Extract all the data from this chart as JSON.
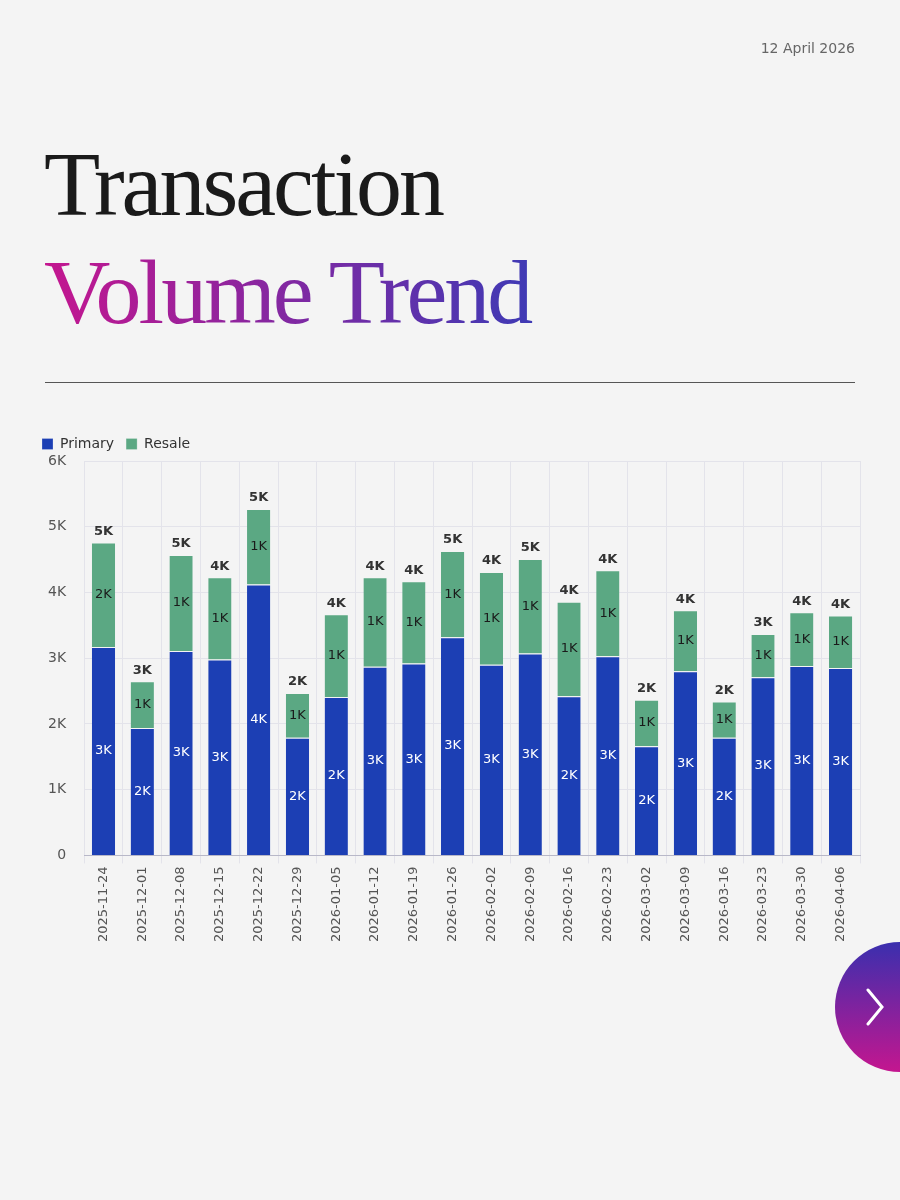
{
  "chart_data": {
    "type": "bar",
    "stacked": true,
    "title": "Transaction Volume Trend",
    "annotations": [
      "12 April 2026"
    ],
    "categories": [
      "2025-11-24",
      "2025-12-01",
      "2025-12-08",
      "2025-12-15",
      "2025-12-22",
      "2025-12-29",
      "2026-01-05",
      "2026-01-12",
      "2026-01-19",
      "2026-01-26",
      "2026-02-02",
      "2026-02-09",
      "2026-02-16",
      "2026-02-23",
      "2026-03-02",
      "2026-03-09",
      "2026-03-16",
      "2026-03-23",
      "2026-03-30",
      "2026-04-06"
    ],
    "series": [
      {
        "name": "Primary",
        "color": "#1c3fb4",
        "values": [
          3170,
          1940,
          3110,
          2980,
          4120,
          1790,
          2410,
          2870,
          2920,
          3320,
          2900,
          3070,
          2420,
          3030,
          1660,
          2800,
          1790,
          2710,
          2880,
          2850
        ],
        "value_labels": [
          "3K",
          "2K",
          "3K",
          "3K",
          "4K",
          "2K",
          "2K",
          "3K",
          "3K",
          "3K",
          "3K",
          "3K",
          "2K",
          "3K",
          "2K",
          "3K",
          "2K",
          "3K",
          "3K",
          "3K"
        ]
      },
      {
        "name": "Resale",
        "color": "#5ba883",
        "values": [
          1590,
          710,
          1460,
          1250,
          1150,
          680,
          1260,
          1360,
          1250,
          1310,
          1410,
          1440,
          1440,
          1310,
          710,
          930,
          550,
          660,
          820,
          800
        ],
        "value_labels": [
          "2K",
          "1K",
          "1K",
          "1K",
          "1K",
          "1K",
          "1K",
          "1K",
          "1K",
          "1K",
          "1K",
          "1K",
          "1K",
          "1K",
          "1K",
          "1K",
          "1K",
          "1K",
          "1K",
          "1K"
        ]
      }
    ],
    "totals": [
      "5K",
      "3K",
      "5K",
      "4K",
      "5K",
      "2K",
      "4K",
      "4K",
      "4K",
      "5K",
      "4K",
      "5K",
      "4K",
      "4K",
      "2K",
      "4K",
      "2K",
      "3K",
      "4K",
      "4K"
    ],
    "ylim": [
      0,
      6000
    ],
    "yticks": [
      0,
      {
        "value": 1000,
        "label": "1K"
      },
      {
        "value": 2000,
        "label": "2K"
      },
      {
        "value": 3000,
        "label": "3K"
      },
      {
        "value": 4000,
        "label": "4K"
      },
      {
        "value": 5000,
        "label": "5K"
      },
      {
        "value": 6000,
        "label": "6K"
      }
    ],
    "grid": true,
    "legend": "top left"
  }
}
